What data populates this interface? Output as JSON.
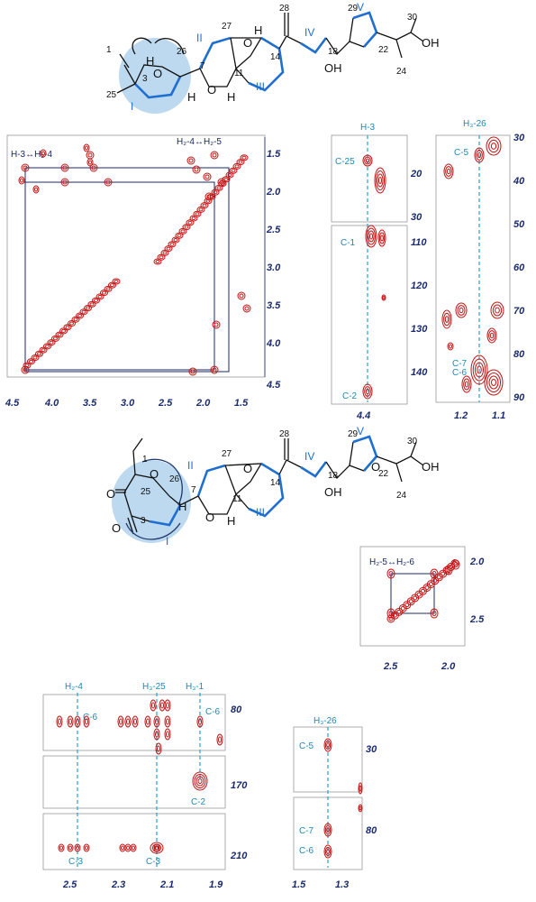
{
  "structure_top": {
    "atom_numbers": [
      "1",
      "26",
      "27",
      "28",
      "29",
      "30",
      "3",
      "7",
      "11",
      "14",
      "18",
      "22",
      "24",
      "25"
    ],
    "ring_labels": [
      "I",
      "II",
      "III",
      "IV",
      "V"
    ],
    "atoms": [
      "O",
      "O",
      "O",
      "H",
      "H",
      "H",
      "H",
      "OH",
      "OH"
    ]
  },
  "structure_bottom": {
    "atom_numbers": [
      "1",
      "25",
      "26",
      "27",
      "28",
      "29",
      "30",
      "3",
      "7",
      "11",
      "14",
      "18",
      "22",
      "24"
    ],
    "ring_labels": [
      "I",
      "II",
      "III",
      "IV",
      "V"
    ],
    "atoms": [
      "O",
      "O",
      "O",
      "O",
      "O",
      "O",
      "H",
      "H",
      "OH",
      "OH"
    ]
  },
  "panels": {
    "cosy_top": {
      "labels": [
        "H-3↔H₂-4",
        "H₂-4↔H₂-5"
      ],
      "x_ticks": [
        "4.5",
        "4.0",
        "3.5",
        "3.0",
        "2.5",
        "2.0",
        "1.5"
      ],
      "y_ticks": [
        "1.5",
        "2.0",
        "2.5",
        "3.0",
        "3.5",
        "4.0",
        "4.5"
      ]
    },
    "hmbc_h3": {
      "header": "H-3",
      "labels": [
        "C-25",
        "C-1",
        "C-2"
      ],
      "y_ticks_top": [
        "20",
        "30"
      ],
      "y_ticks_bottom": [
        "110",
        "120",
        "130",
        "140"
      ],
      "x_ticks": [
        "4.4"
      ]
    },
    "hmbc_h26": {
      "header": "H₃-26",
      "labels": [
        "C-5",
        "C-7",
        "C-6"
      ],
      "y_ticks": [
        "30",
        "40",
        "50",
        "60",
        "70",
        "80",
        "90"
      ],
      "x_ticks": [
        "1.2",
        "1.1"
      ]
    },
    "cosy_small": {
      "label": "H₂-5↔H₂-6",
      "y_ticks": [
        "2.0",
        "2.5"
      ],
      "x_ticks": [
        "2.5",
        "2.0"
      ]
    },
    "hmbc_bottom_left": {
      "headers": [
        "H₂-4",
        "H₃-25",
        "H₃-1"
      ],
      "labels": [
        "C-6",
        "C-6",
        "C-2",
        "C-3",
        "C-3"
      ],
      "y_ticks": [
        "80",
        "170",
        "210"
      ],
      "x_ticks": [
        "2.5",
        "2.3",
        "2.1",
        "1.9"
      ]
    },
    "hmbc_bottom_right": {
      "header": "H₃-26",
      "labels": [
        "C-5",
        "C-7",
        "C-6"
      ],
      "y_ticks": [
        "30",
        "80"
      ],
      "x_ticks": [
        "1.5",
        "1.3"
      ]
    }
  },
  "colors": {
    "peaks": "#c41212",
    "guides": "#2aa0cc",
    "rings": "#1e6fd0",
    "axis": "#1b2b6b",
    "highlight": "#bcd9ef"
  }
}
